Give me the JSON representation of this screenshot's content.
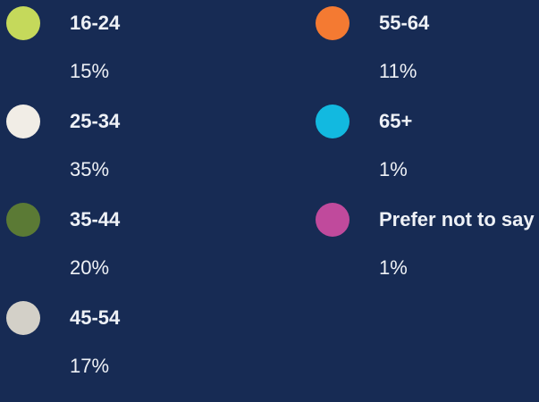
{
  "legend": {
    "columns": [
      [
        {
          "label": "16-24",
          "value": "15%",
          "color": "#c5d95b"
        },
        {
          "label": "25-34",
          "value": "35%",
          "color": "#f1ede6"
        },
        {
          "label": "35-44",
          "value": "20%",
          "color": "#5b7a35"
        },
        {
          "label": "45-54",
          "value": "17%",
          "color": "#d3d0c8"
        }
      ],
      [
        {
          "label": "55-64",
          "value": "11%",
          "color": "#f47a32"
        },
        {
          "label": "65+",
          "value": "1%",
          "color": "#12b9e0"
        },
        {
          "label": "Prefer not to say",
          "value": "1%",
          "color": "#c04a9c"
        }
      ]
    ]
  }
}
